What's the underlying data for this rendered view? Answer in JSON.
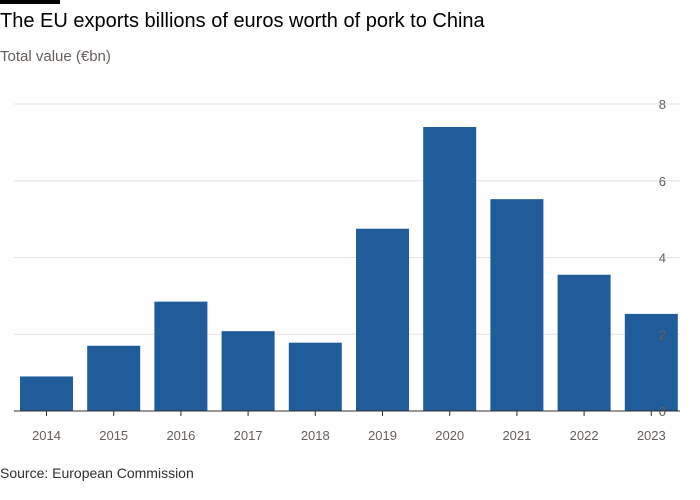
{
  "header": {
    "title": "The EU exports billions of euros worth of pork to China",
    "subtitle": "Total value (€bn)"
  },
  "footer": {
    "source": "Source: European Commission"
  },
  "colors": {
    "bar": "#1f5c99",
    "grid": "#e6e4e2",
    "axis": "#33302e",
    "text": "#66605c"
  },
  "chart_data": {
    "type": "bar",
    "categories": [
      "2014",
      "2015",
      "2016",
      "2017",
      "2018",
      "2019",
      "2020",
      "2021",
      "2022",
      "2023"
    ],
    "values": [
      0.9,
      1.7,
      2.85,
      2.08,
      1.78,
      4.75,
      7.4,
      5.52,
      3.55,
      2.53
    ],
    "yticks": [
      "0",
      "2",
      "4",
      "6",
      "8"
    ],
    "ylim": [
      0,
      8
    ],
    "grid": true,
    "y_axis_side": "right"
  }
}
